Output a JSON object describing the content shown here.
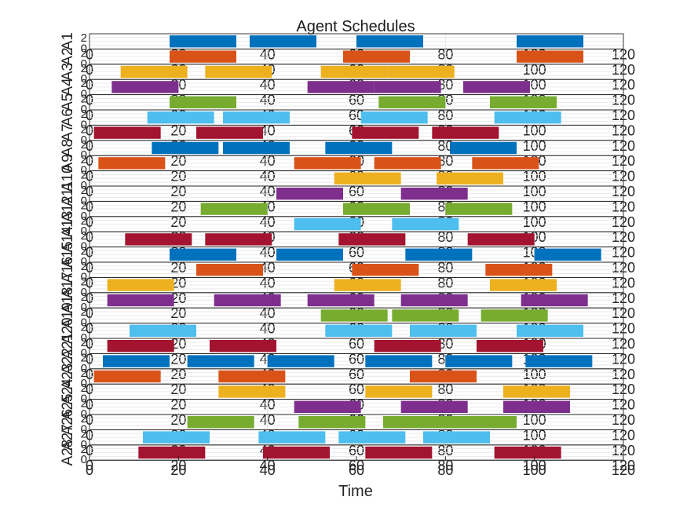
{
  "chart_data": {
    "type": "gantt",
    "title": "Agent Schedules",
    "xlabel": "Time",
    "xlim": [
      0,
      120
    ],
    "x_ticks": [
      0,
      20,
      40,
      60,
      80,
      100,
      120
    ],
    "y_ticks": [
      0,
      2
    ],
    "grid": true,
    "palette": [
      "#0072BD",
      "#D95319",
      "#EDB120",
      "#7E2F8E",
      "#77AC30",
      "#4DBEEE",
      "#A2142F"
    ],
    "agents": [
      {
        "name": "A1",
        "intervals": [
          [
            18,
            33
          ],
          [
            36,
            51
          ],
          [
            60,
            75
          ],
          [
            96,
            111
          ]
        ]
      },
      {
        "name": "A2",
        "intervals": [
          [
            18,
            33
          ],
          [
            57,
            72
          ],
          [
            96,
            111
          ]
        ]
      },
      {
        "name": "A3",
        "intervals": [
          [
            7,
            22
          ],
          [
            26,
            41
          ],
          [
            52,
            67
          ],
          [
            67,
            82
          ]
        ]
      },
      {
        "name": "A4",
        "intervals": [
          [
            5,
            20
          ],
          [
            49,
            64
          ],
          [
            64,
            79
          ],
          [
            84,
            99
          ]
        ]
      },
      {
        "name": "A5",
        "intervals": [
          [
            18,
            33
          ],
          [
            65,
            80
          ],
          [
            90,
            105
          ]
        ]
      },
      {
        "name": "A6",
        "intervals": [
          [
            13,
            28
          ],
          [
            30,
            45
          ],
          [
            61,
            76
          ],
          [
            91,
            106
          ]
        ]
      },
      {
        "name": "A7",
        "intervals": [
          [
            1,
            16
          ],
          [
            24,
            39
          ],
          [
            59,
            74
          ],
          [
            77,
            92
          ]
        ]
      },
      {
        "name": "A8",
        "intervals": [
          [
            14,
            29
          ],
          [
            30,
            45
          ],
          [
            53,
            68
          ],
          [
            81,
            96
          ]
        ]
      },
      {
        "name": "A9",
        "intervals": [
          [
            2,
            17
          ],
          [
            46,
            61
          ],
          [
            64,
            79
          ],
          [
            86,
            101
          ]
        ]
      },
      {
        "name": "A10",
        "intervals": [
          [
            55,
            70
          ],
          [
            78,
            93
          ]
        ]
      },
      {
        "name": "A11",
        "intervals": [
          [
            42,
            57
          ],
          [
            70,
            85
          ]
        ]
      },
      {
        "name": "A12",
        "intervals": [
          [
            25,
            40
          ],
          [
            57,
            72
          ],
          [
            80,
            95
          ]
        ]
      },
      {
        "name": "A13",
        "intervals": [
          [
            46,
            61
          ],
          [
            68,
            83
          ]
        ]
      },
      {
        "name": "A14",
        "intervals": [
          [
            8,
            23
          ],
          [
            26,
            41
          ],
          [
            56,
            71
          ],
          [
            85,
            100
          ]
        ]
      },
      {
        "name": "A15",
        "intervals": [
          [
            18,
            33
          ],
          [
            42,
            57
          ],
          [
            71,
            86
          ],
          [
            100,
            115
          ]
        ]
      },
      {
        "name": "A16",
        "intervals": [
          [
            24,
            39
          ],
          [
            59,
            74
          ],
          [
            89,
            104
          ]
        ]
      },
      {
        "name": "A17",
        "intervals": [
          [
            4,
            19
          ],
          [
            55,
            70
          ],
          [
            90,
            105
          ]
        ]
      },
      {
        "name": "A18",
        "intervals": [
          [
            4,
            19
          ],
          [
            28,
            43
          ],
          [
            49,
            64
          ],
          [
            70,
            85
          ],
          [
            97,
            112
          ]
        ]
      },
      {
        "name": "A19",
        "intervals": [
          [
            52,
            67
          ],
          [
            68,
            83
          ],
          [
            88,
            103
          ]
        ]
      },
      {
        "name": "A20",
        "intervals": [
          [
            9,
            24
          ],
          [
            53,
            68
          ],
          [
            72,
            87
          ],
          [
            96,
            111
          ]
        ]
      },
      {
        "name": "A21",
        "intervals": [
          [
            4,
            19
          ],
          [
            27,
            42
          ],
          [
            64,
            79
          ],
          [
            87,
            102
          ]
        ]
      },
      {
        "name": "A22",
        "intervals": [
          [
            3,
            18
          ],
          [
            22,
            37
          ],
          [
            40,
            55
          ],
          [
            62,
            77
          ],
          [
            80,
            95
          ],
          [
            98,
            113
          ]
        ]
      },
      {
        "name": "A23",
        "intervals": [
          [
            1,
            16
          ],
          [
            29,
            44
          ],
          [
            72,
            87
          ]
        ]
      },
      {
        "name": "A24",
        "intervals": [
          [
            29,
            44
          ],
          [
            62,
            77
          ],
          [
            93,
            108
          ]
        ]
      },
      {
        "name": "A25",
        "intervals": [
          [
            46,
            61
          ],
          [
            70,
            85
          ],
          [
            93,
            108
          ]
        ]
      },
      {
        "name": "A26",
        "intervals": [
          [
            22,
            37
          ],
          [
            47,
            62
          ],
          [
            66,
            81
          ],
          [
            81,
            96
          ]
        ]
      },
      {
        "name": "A27",
        "intervals": [
          [
            12,
            27
          ],
          [
            38,
            53
          ],
          [
            56,
            71
          ],
          [
            75,
            90
          ]
        ]
      },
      {
        "name": "A28",
        "intervals": [
          [
            11,
            26
          ],
          [
            39,
            54
          ],
          [
            62,
            77
          ],
          [
            91,
            106
          ]
        ]
      }
    ]
  }
}
